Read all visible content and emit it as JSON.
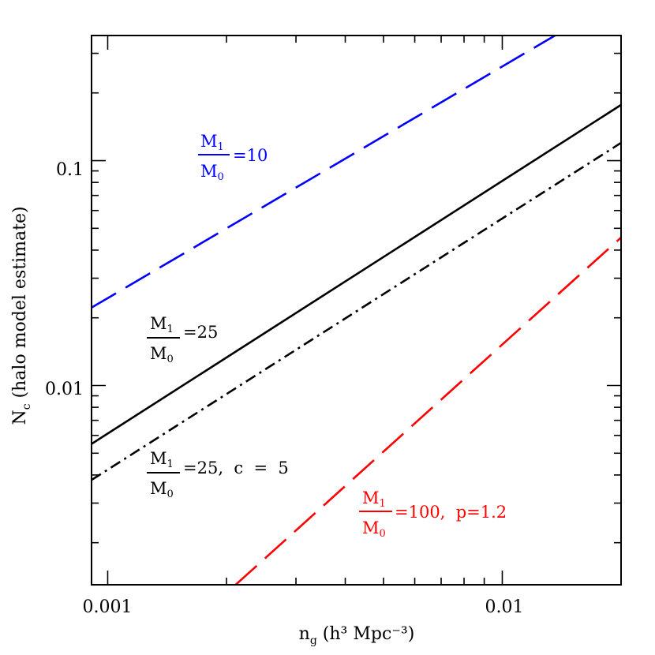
{
  "chart_data": {
    "type": "line",
    "x_scale": "log",
    "y_scale": "log",
    "xlim": [
      0.00091,
      0.02
    ],
    "ylim": [
      0.0013,
      0.36
    ],
    "grid": false,
    "xlabel": {
      "main": "n",
      "sub": "g",
      "rest": " (h³ Mpc⁻³)"
    },
    "ylabel": {
      "main": "N",
      "sub": "c",
      "rest": " (halo model estimate)"
    },
    "x_tick_labels": [
      "0.001",
      "0.01"
    ],
    "y_tick_labels": [
      "0.01",
      "0.1"
    ],
    "series": [
      {
        "style": "dashed",
        "color": "#0000ff",
        "x": [
          0.00091,
          0.0136
        ],
        "y": [
          0.0222,
          0.36
        ]
      },
      {
        "style": "solid",
        "color": "#000000",
        "x": [
          0.00091,
          0.02
        ],
        "y": [
          0.0055,
          0.177
        ]
      },
      {
        "style": "dashdot",
        "color": "#000000",
        "x": [
          0.00091,
          0.02
        ],
        "y": [
          0.0038,
          0.12
        ]
      },
      {
        "style": "dashed",
        "color": "#ff0000",
        "x": [
          0.00211,
          0.02
        ],
        "y": [
          0.0013,
          0.0455
        ]
      }
    ],
    "annotations": [
      {
        "num": "M",
        "num_sub": "1",
        "den": "M",
        "den_sub": "0",
        "rest": "=10",
        "color": "#0000ff"
      },
      {
        "num": "M",
        "num_sub": "1",
        "den": "M",
        "den_sub": "0",
        "rest": "=25",
        "color": "#000000"
      },
      {
        "num": "M",
        "num_sub": "1",
        "den": "M",
        "den_sub": "0",
        "rest": "=25,  c  =  5",
        "color": "#000000"
      },
      {
        "num": "M",
        "num_sub": "1",
        "den": "M",
        "den_sub": "0",
        "rest": "=100,  p=1.2",
        "color": "#ff0000"
      }
    ]
  }
}
